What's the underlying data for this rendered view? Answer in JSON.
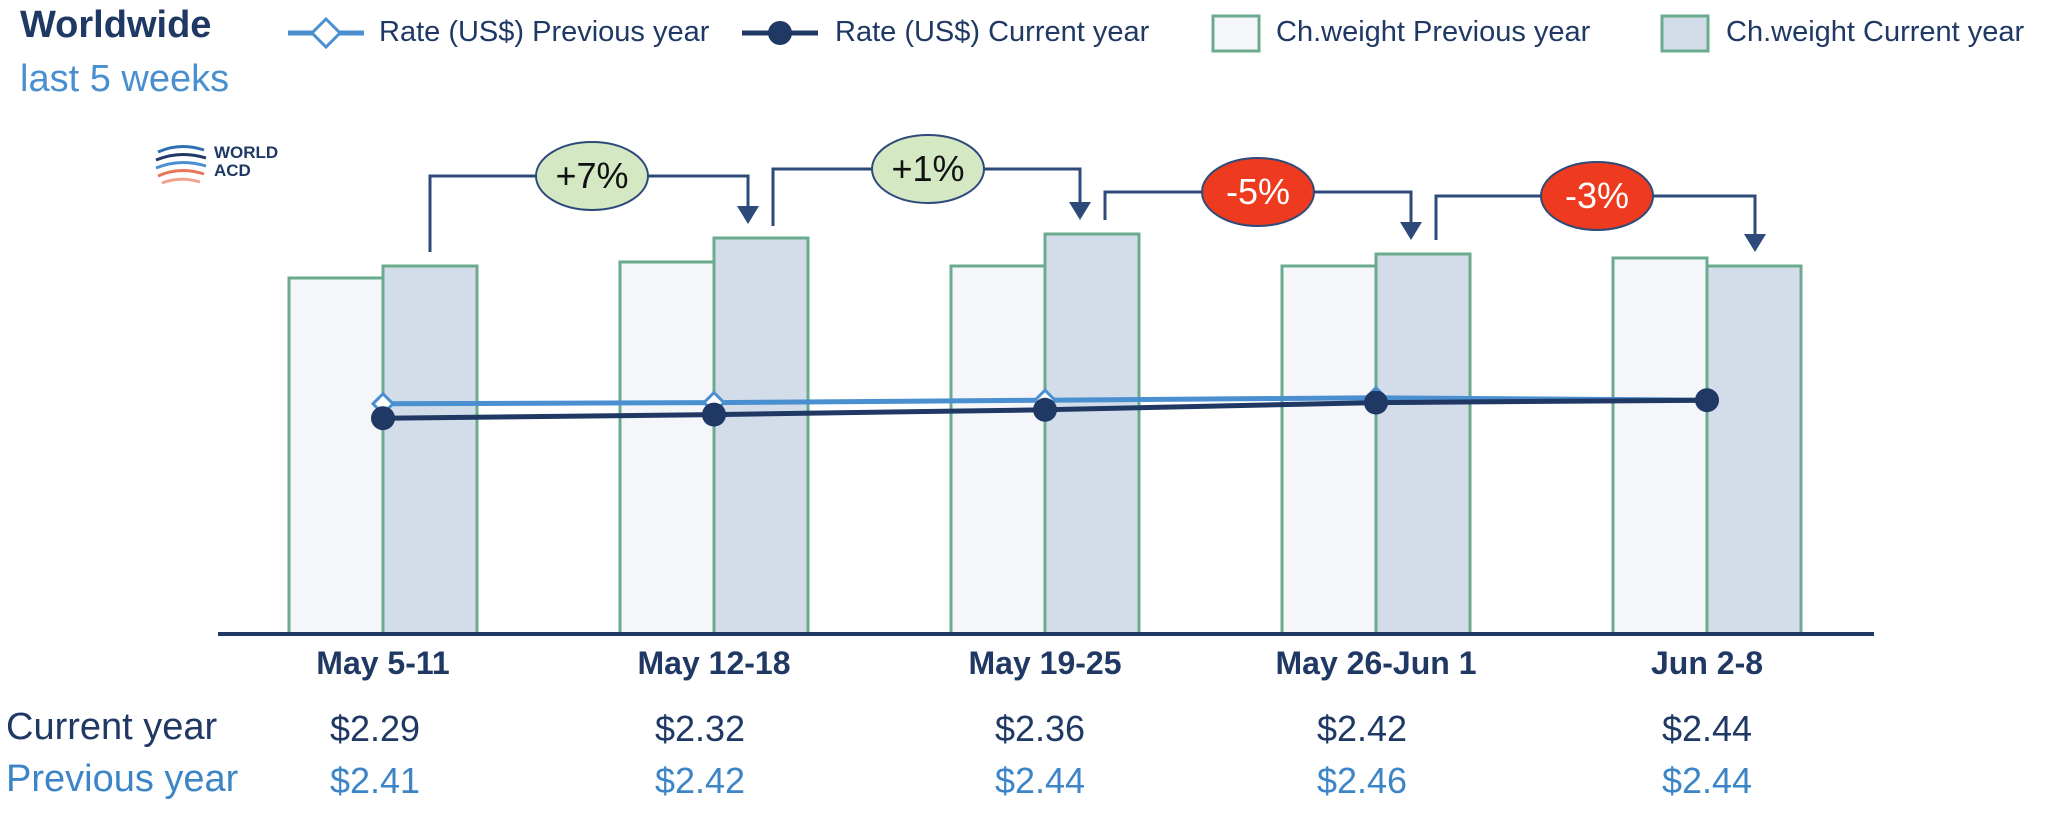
{
  "header": {
    "title": "Worldwide",
    "subtitle": "last 5 weeks"
  },
  "logo": {
    "text": "WORLD ACD"
  },
  "legend": [
    {
      "label": "Rate (US$) Previous year",
      "kind": "line-diamond",
      "color": "#4a8fd0"
    },
    {
      "label": "Rate (US$) Current year",
      "kind": "line-dot",
      "color": "#1f3864"
    },
    {
      "label": "Ch.weight Previous year",
      "kind": "box",
      "fill": "#f4f6fa",
      "stroke": "#6aab8e"
    },
    {
      "label": "Ch.weight Current year",
      "kind": "box",
      "fill": "#d3dde9",
      "stroke": "#6aab8e"
    }
  ],
  "row_labels": {
    "current": "Current year",
    "previous": "Previous year"
  },
  "chart_data": {
    "type": "bar",
    "categories": [
      "May 5-11",
      "May 12-18",
      "May 19-25",
      "May 26-Jun 1",
      "Jun 2-8"
    ],
    "series": [
      {
        "name": "Ch.weight Previous year",
        "type": "bar",
        "values": [
          89,
          93,
          92,
          92,
          94
        ]
      },
      {
        "name": "Ch.weight Current year",
        "type": "bar",
        "values": [
          92,
          99,
          100,
          95,
          92
        ]
      },
      {
        "name": "Rate (US$) Previous year",
        "type": "line",
        "values": [
          2.41,
          2.42,
          2.44,
          2.46,
          2.44
        ]
      },
      {
        "name": "Rate (US$) Current year",
        "type": "line",
        "values": [
          2.29,
          2.32,
          2.36,
          2.42,
          2.44
        ]
      }
    ],
    "rate_table": {
      "current": [
        "$2.29",
        "$2.32",
        "$2.36",
        "$2.42",
        "$2.44"
      ],
      "previous": [
        "$2.41",
        "$2.42",
        "$2.44",
        "$2.46",
        "$2.44"
      ]
    },
    "week_on_week_change": [
      {
        "label": "+7%",
        "value": 7,
        "color": "#d5e8c4"
      },
      {
        "label": "+1%",
        "value": 1,
        "color": "#d5e8c4"
      },
      {
        "label": "-5%",
        "value": -5,
        "color": "#ee3b1f"
      },
      {
        "label": "-3%",
        "value": -3,
        "color": "#ee3b1f"
      }
    ],
    "colors": {
      "bar_stroke": "#6aab8e",
      "bar_prev_fill": "#f4f6fa",
      "bar_cur_fill": "#d3dde9",
      "line_prev": "#4a8fd0",
      "line_cur": "#1f3864",
      "connector": "#2e4a7a",
      "axis": "#1f3864"
    }
  }
}
